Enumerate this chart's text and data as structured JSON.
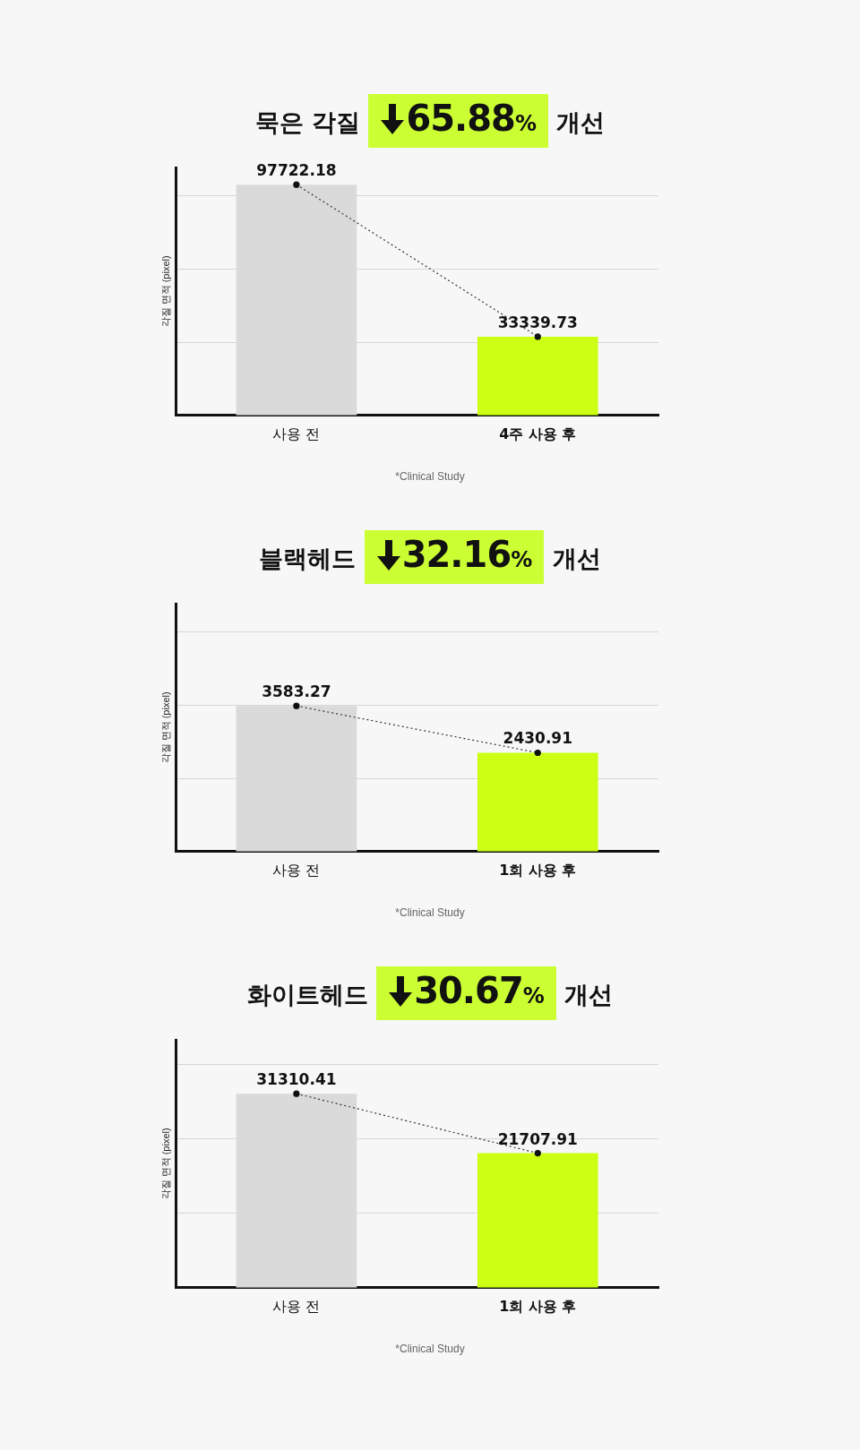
{
  "chart_data": [
    {
      "type": "bar",
      "title": "묵은 각질 65.88% 개선",
      "ylabel": "각질 면적 (pixel)",
      "categories": [
        "사용 전",
        "4주 사용 후"
      ],
      "series": [
        {
          "colors": [
            "#dadada",
            "#ccff14"
          ],
          "values": [
            97722.18,
            33339.73
          ]
        },
        {
          "type": "line",
          "color": "#333333",
          "line_style": "dotted",
          "marker": "circle",
          "values": [
            97722.18,
            33339.73
          ],
          "value_labels": [
            "97722.18",
            "33339.73"
          ]
        }
      ],
      "ylim": [
        0,
        105000
      ],
      "yticks": [
        {
          "value": 31000,
          "label": null
        },
        {
          "value": 62000,
          "label": null
        },
        {
          "value": 93000,
          "label": null
        }
      ],
      "grid": "y",
      "tick_labels": "x",
      "annotations": [
        "*Clinical Study"
      ]
    },
    {
      "type": "bar",
      "title": "블랙헤드 32.16% 개선",
      "ylabel": "각질 면적 (pixel)",
      "categories": [
        "사용 전",
        "1회 사용 후"
      ],
      "series": [
        {
          "colors": [
            "#dadada",
            "#ccff14"
          ],
          "values": [
            3583.27,
            2430.91
          ]
        },
        {
          "type": "line",
          "color": "#333333",
          "line_style": "dotted",
          "marker": "circle",
          "values": [
            3583.27,
            2430.91
          ],
          "value_labels": [
            "3583.27",
            "2430.91"
          ]
        }
      ],
      "ylim": [
        0,
        6100
      ],
      "yticks": [
        {
          "value": 1800,
          "label": null
        },
        {
          "value": 3600,
          "label": null
        },
        {
          "value": 5400,
          "label": null
        }
      ],
      "grid": "y",
      "tick_labels": "x",
      "annotations": [
        "*Clinical Study"
      ]
    },
    {
      "type": "bar",
      "title": "화이트헤드 30.67% 개선",
      "ylabel": "각질 면적 (pixel)",
      "categories": [
        "사용 전",
        "1회 사용 후"
      ],
      "series": [
        {
          "colors": [
            "#dadada",
            "#ccff14"
          ],
          "values": [
            31310.41,
            21707.91
          ]
        },
        {
          "type": "line",
          "color": "#333333",
          "line_style": "dotted",
          "marker": "circle",
          "values": [
            31310.41,
            21707.91
          ],
          "value_labels": [
            "31310.41",
            "21707.91"
          ]
        }
      ],
      "ylim": [
        0,
        40000
      ],
      "yticks": [
        {
          "value": 12000,
          "label": null
        },
        {
          "value": 24000,
          "label": null
        },
        {
          "value": 36000,
          "label": null
        }
      ],
      "grid": "y",
      "tick_labels": "x",
      "annotations": [
        "*Clinical Study"
      ]
    }
  ]
}
